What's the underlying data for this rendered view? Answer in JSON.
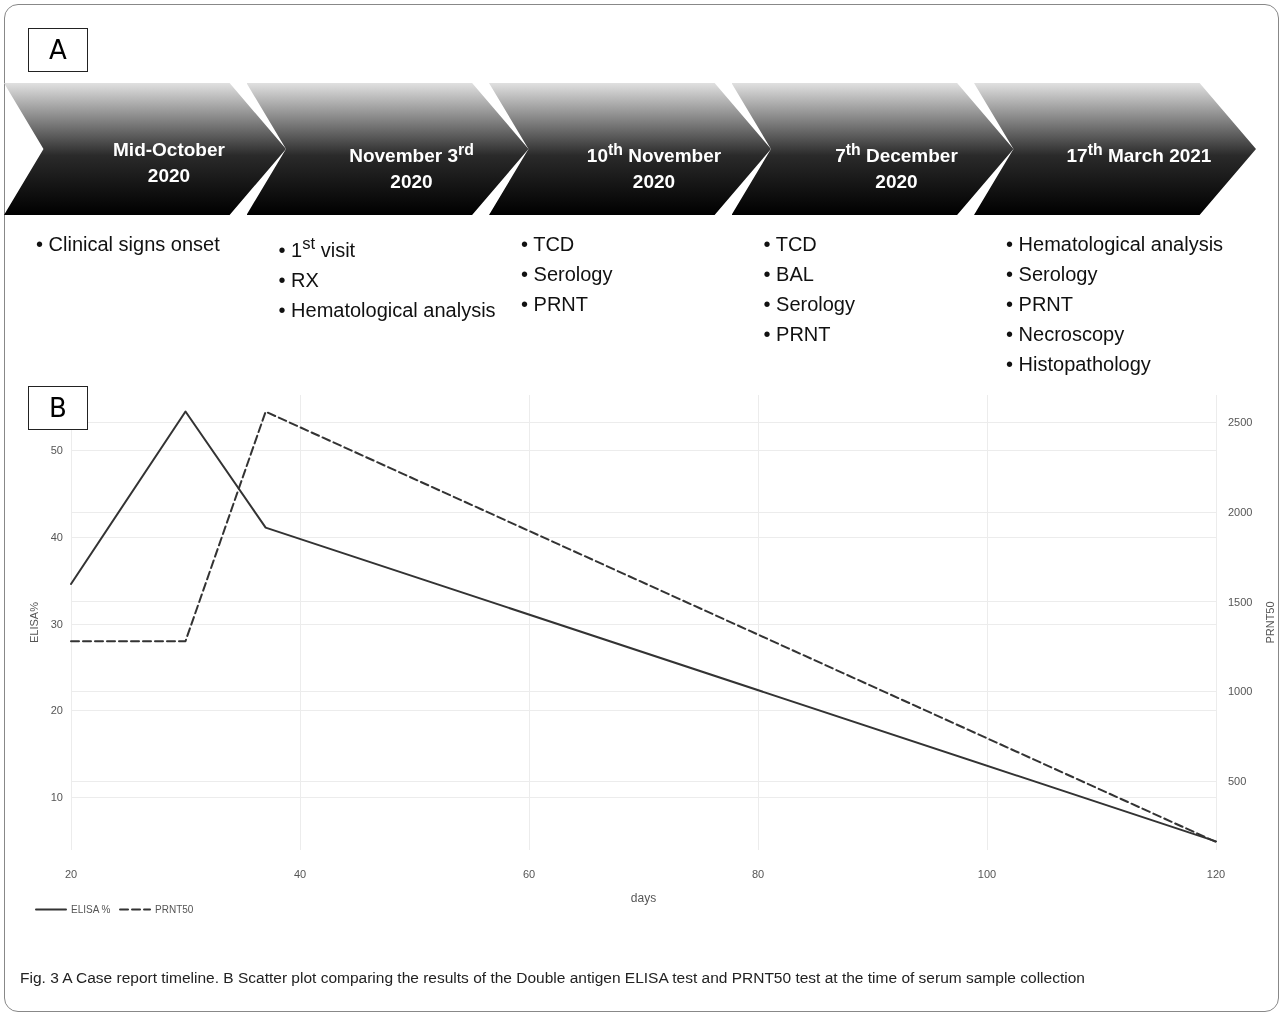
{
  "chart_data": [
    {
      "type": "other",
      "title": "A",
      "categories": [
        "Mid-October 2020",
        "November 3$^{rd}$ 2020",
        "10$^{th}$ November 2020",
        "7$^{th}$ December 2020",
        "17$^{th}$ March 2021"
      ],
      "annotations": [
        "• Clinical signs onset",
        "• 1$^{st}$ visit\n• RX\n• Hematological analysis",
        "• TCD\n• Serology\n• PRNT",
        "• TCD\n• BAL\n• Serology\n• PRNT",
        "• Hematological analysis\n• Serology\n• PRNT\n• Necroscopy\n• Histopathology"
      ]
    },
    {
      "type": "line",
      "title": "B",
      "xlabel": "days",
      "ylabel": "ELISA%",
      "y2label": "PRNT50",
      "series": [
        {
          "name": "ELISA %",
          "color": "#333333",
          "line_style": "solid",
          "x": [
            20,
            30,
            37,
            120
          ],
          "values": [
            34.6,
            54.5,
            41.1,
            4.9
          ]
        },
        {
          "name": "PRNT50",
          "color": "#333333",
          "line_style": "dashed",
          "axis": "y2",
          "x": [
            20,
            30,
            37,
            120
          ],
          "values": [
            1280,
            1280,
            2560,
            160
          ]
        }
      ],
      "xlim": [
        20,
        120
      ],
      "xticks": [
        20,
        40,
        60,
        80,
        100,
        120
      ],
      "ylim": [
        3.9,
        56.4
      ],
      "yticks": [
        10,
        20,
        30,
        40,
        50
      ],
      "y2lim": [
        115,
        2653
      ],
      "y2ticks": [
        500,
        1000,
        1500,
        2000,
        2500
      ],
      "grid": true,
      "legend": "bottom left",
      "marker": "none",
      "annotations": [
        "Fig. 3 A Case report timeline. B Scatter plot comparing the results of the Double antigen ELISA test and PRNT50 test at the time of serum sample collection"
      ]
    }
  ]
}
